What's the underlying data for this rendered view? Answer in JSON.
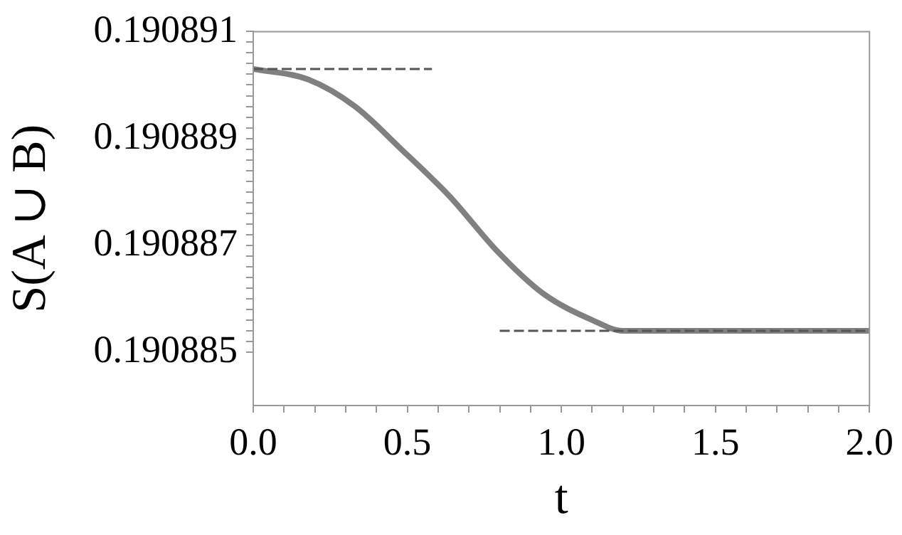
{
  "chart_data": {
    "type": "line",
    "xlabel": "t",
    "ylabel": "S(A ∪ B)",
    "xlim": [
      0,
      2
    ],
    "ylim": [
      0.190884,
      0.190891
    ],
    "xticks": [
      {
        "value": 0,
        "label": "0.0"
      },
      {
        "value": 0.1,
        "label": null
      },
      {
        "value": 0.2,
        "label": null
      },
      {
        "value": 0.3,
        "label": null
      },
      {
        "value": 0.4,
        "label": null
      },
      {
        "value": 0.5,
        "label": "0.5"
      },
      {
        "value": 0.6,
        "label": null
      },
      {
        "value": 0.7,
        "label": null
      },
      {
        "value": 0.8,
        "label": null
      },
      {
        "value": 0.9,
        "label": null
      },
      {
        "value": 1,
        "label": "1.0"
      },
      {
        "value": 1.1,
        "label": null
      },
      {
        "value": 1.2,
        "label": null
      },
      {
        "value": 1.3,
        "label": null
      },
      {
        "value": 1.4,
        "label": null
      },
      {
        "value": 1.5,
        "label": "1.5"
      },
      {
        "value": 1.6,
        "label": null
      },
      {
        "value": 1.7,
        "label": null
      },
      {
        "value": 1.8,
        "label": null
      },
      {
        "value": 1.9,
        "label": null
      },
      {
        "value": 2,
        "label": "2.0"
      }
    ],
    "yticks": [
      0.190885,
      {
        "value": 0.1908852,
        "label": null
      },
      {
        "value": 0.1908854,
        "label": null
      },
      {
        "value": 0.1908856,
        "label": null
      },
      {
        "value": 0.1908858,
        "label": null
      },
      {
        "value": 0.190886,
        "label": null
      },
      {
        "value": 0.1908862,
        "label": null
      },
      {
        "value": 0.1908864,
        "label": null
      },
      {
        "value": 0.1908866,
        "label": null
      },
      {
        "value": 0.1908868,
        "label": null
      },
      0.190887,
      {
        "value": 0.1908872,
        "label": null
      },
      {
        "value": 0.1908874,
        "label": null
      },
      {
        "value": 0.1908876,
        "label": null
      },
      {
        "value": 0.1908878,
        "label": null
      },
      {
        "value": 0.190888,
        "label": null
      },
      {
        "value": 0.1908882,
        "label": null
      },
      {
        "value": 0.1908884,
        "label": null
      },
      {
        "value": 0.1908886,
        "label": null
      },
      {
        "value": 0.1908888,
        "label": null
      },
      0.190889,
      {
        "value": 0.1908892,
        "label": null
      },
      {
        "value": 0.1908894,
        "label": null
      },
      {
        "value": 0.1908896,
        "label": null
      },
      {
        "value": 0.1908898,
        "label": null
      },
      {
        "value": 0.19089,
        "label": null
      },
      {
        "value": 0.1908902,
        "label": null
      },
      {
        "value": 0.1908904,
        "label": null
      },
      {
        "value": 0.1908906,
        "label": null
      },
      {
        "value": 0.1908908,
        "label": null
      },
      0.190891
    ],
    "grid": false,
    "legend": false,
    "marker": "none",
    "series": [
      {
        "color": "#555555",
        "line_style": "dashed",
        "x": [
          0,
          0.58
        ],
        "values": [
          0.1908903,
          0.1908903
        ]
      },
      {
        "color": "#555555",
        "line_style": "dashed",
        "x": [
          0.8,
          2
        ],
        "values": [
          0.1908854,
          0.1908854
        ]
      },
      {
        "color": "#808080",
        "line_style": "solid",
        "x": [
          0,
          0.18,
          0.33,
          0.48,
          0.64,
          0.79,
          0.94,
          1.1,
          1.2,
          1.33,
          1.6,
          2
        ],
        "values": [
          0.1908903,
          0.1908901,
          0.1908896,
          0.1908888,
          0.1908879,
          0.1908869,
          0.1908861,
          0.1908856,
          0.1908854,
          0.1908854,
          0.1908854,
          0.1908854
        ]
      }
    ]
  }
}
